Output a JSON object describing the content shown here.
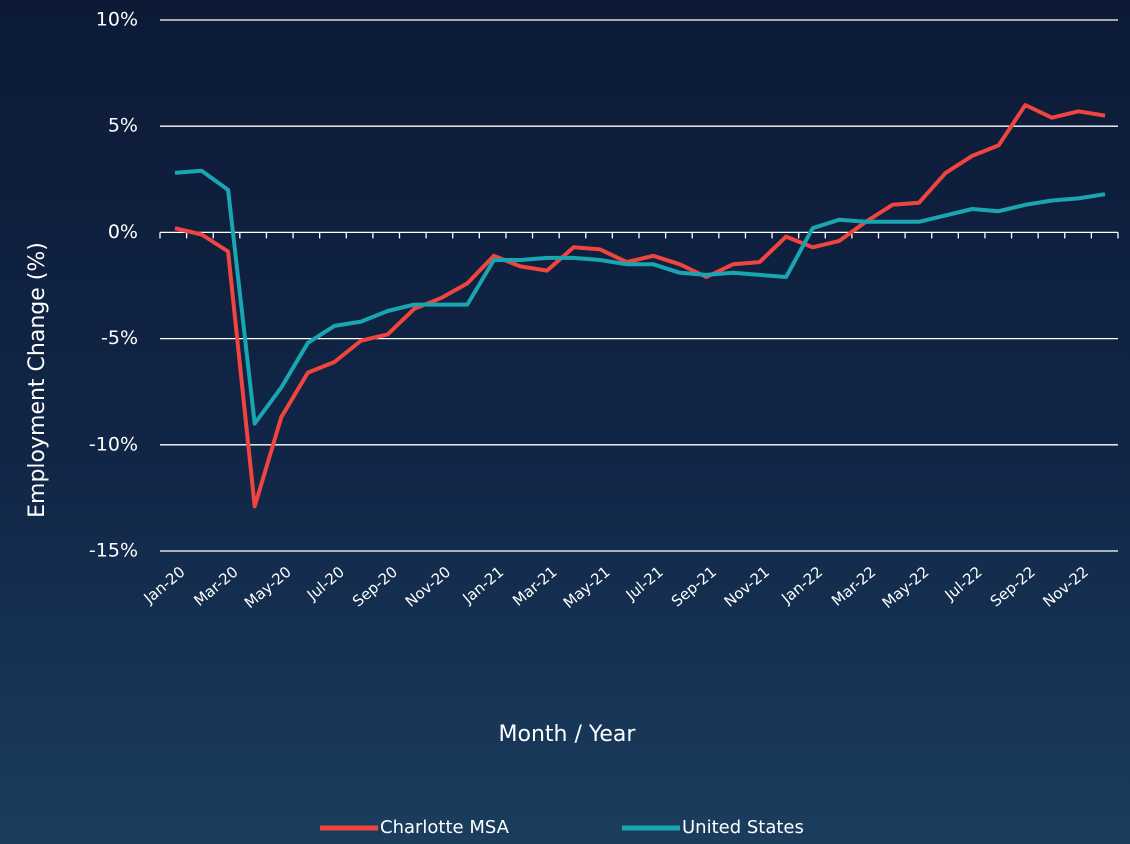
{
  "chart_data": {
    "type": "line",
    "y_label": "Employment Change (%)",
    "x_label": "Month / Year",
    "categories": [
      "Jan-20",
      null,
      "Mar-20",
      null,
      "May-20",
      null,
      "Jul-20",
      null,
      "Sep-20",
      null,
      "Nov-20",
      null,
      "Jan-21",
      null,
      "Mar-21",
      null,
      "May-21",
      null,
      "Jul-21",
      null,
      "Sep-21",
      null,
      "Nov-21",
      null,
      "Jan-22",
      null,
      "Mar-22",
      null,
      "May-22",
      null,
      "Jul-22",
      null,
      "Sep-22",
      null,
      "Nov-22",
      null
    ],
    "series": [
      {
        "name": "Charlotte MSA",
        "color": "#f0443f",
        "values": [
          0.2,
          -0.1,
          -0.9,
          -12.9,
          -8.7,
          -6.6,
          -6.1,
          -5.1,
          -4.8,
          -3.6,
          -3.1,
          -2.4,
          -1.1,
          -1.6,
          -1.8,
          -0.7,
          -0.8,
          -1.4,
          -1.1,
          -1.5,
          -2.1,
          -1.5,
          -1.4,
          -0.2,
          -0.7,
          -0.4,
          0.5,
          1.3,
          1.4,
          2.8,
          3.6,
          4.1,
          6.0,
          5.4,
          5.7,
          5.5
        ]
      },
      {
        "name": "United States",
        "color": "#1aa6b0",
        "values": [
          2.8,
          2.9,
          2.0,
          -9.0,
          -7.3,
          -5.2,
          -4.4,
          -4.2,
          -3.7,
          -3.4,
          -3.4,
          -3.4,
          -1.3,
          -1.3,
          -1.2,
          -1.2,
          -1.3,
          -1.5,
          -1.5,
          -1.9,
          -2.0,
          -1.9,
          -2.0,
          -2.1,
          0.2,
          0.6,
          0.5,
          0.5,
          0.5,
          0.8,
          1.1,
          1.0,
          1.3,
          1.5,
          1.6,
          1.8
        ]
      }
    ],
    "ylim": [
      -15,
      10
    ],
    "yticks": [
      {
        "value": -15,
        "label": "-15%"
      },
      {
        "value": -10,
        "label": "-10%"
      },
      {
        "value": -5,
        "label": "-5%"
      },
      {
        "value": 0,
        "label": "0%"
      },
      {
        "value": 5,
        "label": "5%"
      },
      {
        "value": 10,
        "label": "10%"
      }
    ],
    "grid": true,
    "legend": "bottom"
  }
}
